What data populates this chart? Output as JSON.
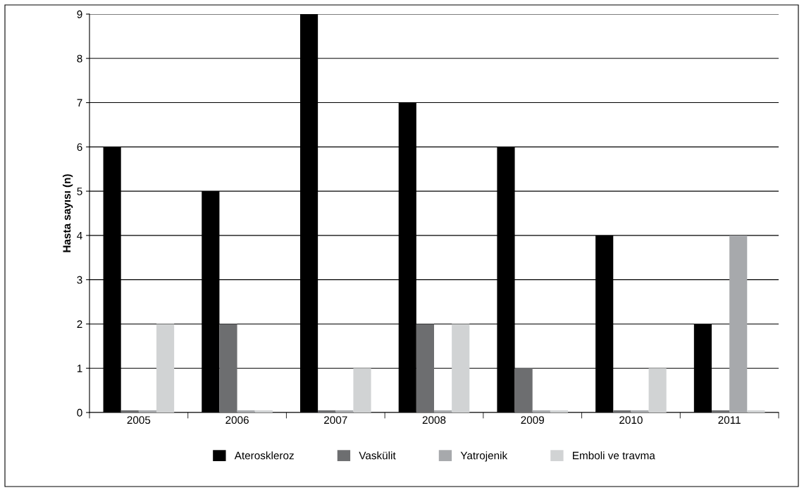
{
  "chart_data": {
    "type": "bar",
    "ylabel": "Hasta sayısı (n)",
    "categories": [
      "2005",
      "2006",
      "2007",
      "2008",
      "2009",
      "2010",
      "2011"
    ],
    "series": [
      {
        "name": "Ateroskleroz",
        "color": "#000000",
        "values": [
          6,
          5,
          9,
          7,
          6,
          4,
          2
        ]
      },
      {
        "name": "Vaskülit",
        "color": "#6d6e70",
        "values": [
          0.05,
          2,
          0.05,
          2,
          1,
          0.05,
          0.05
        ]
      },
      {
        "name": "Yatrojenik",
        "color": "#a7a9ac",
        "values": [
          0.05,
          0.05,
          0.05,
          0.05,
          0.05,
          0.05,
          4
        ]
      },
      {
        "name": "Emboli ve travma",
        "color": "#d1d3d4",
        "values": [
          2,
          0.05,
          1,
          2,
          0.05,
          1,
          0.05
        ]
      }
    ],
    "ylim": [
      0,
      9
    ],
    "yticks": [
      0,
      1,
      2,
      3,
      4,
      5,
      6,
      7,
      8,
      9
    ],
    "grid": "y",
    "legend": "bottom"
  }
}
